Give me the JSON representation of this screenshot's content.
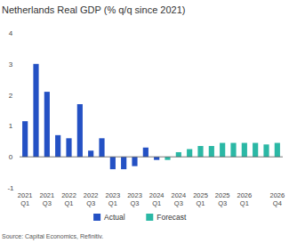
{
  "chart_data": {
    "type": "bar",
    "title": "Netherlands Real GDP (% q/q since 2021)",
    "source": "Source: Capital Economics, Refinitiv.",
    "categories": [
      "2021 Q1",
      null,
      "2021 Q3",
      null,
      "2022 Q1",
      null,
      "2022 Q3",
      null,
      "2023 Q1",
      null,
      "2023 Q3",
      null,
      "2024 Q1",
      null,
      "2024 Q3",
      null,
      "2025 Q1",
      null,
      "2025 Q3",
      null,
      "2026 Q1",
      null,
      null,
      "2026 Q4"
    ],
    "series": [
      {
        "name": "Actual",
        "color": "#2451c4",
        "values": [
          1.15,
          3.0,
          2.1,
          0.7,
          0.6,
          1.7,
          0.2,
          0.6,
          -0.4,
          -0.4,
          -0.3,
          0.3,
          -0.1,
          null,
          null,
          null,
          null,
          null,
          null,
          null,
          null,
          null,
          null,
          null
        ]
      },
      {
        "name": "Forecast",
        "color": "#2bb8a5",
        "values": [
          null,
          null,
          null,
          null,
          null,
          null,
          null,
          null,
          null,
          null,
          null,
          null,
          null,
          -0.1,
          0.15,
          0.25,
          0.35,
          0.35,
          0.45,
          0.45,
          0.45,
          0.45,
          0.4,
          0.45
        ]
      }
    ],
    "ylim": [
      -1,
      4
    ],
    "yticks": [
      -1,
      0,
      1,
      2,
      3,
      4
    ],
    "grid": false,
    "legend": "bottom"
  }
}
